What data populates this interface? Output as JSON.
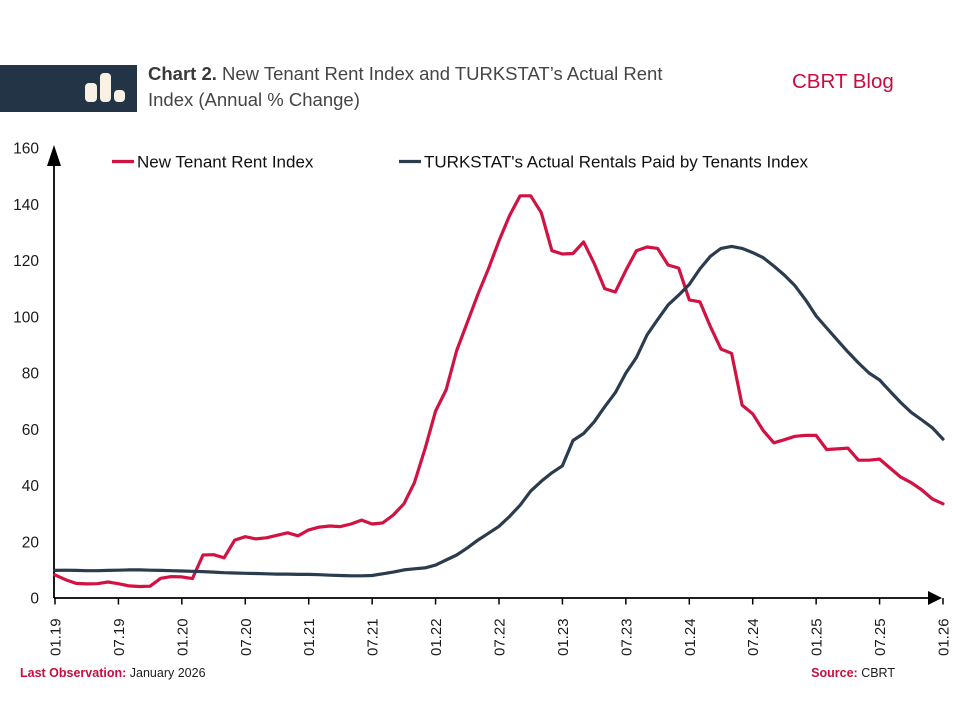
{
  "header": {
    "title_bold": "Chart 2.",
    "title_rest": "New Tenant Rent Index and TURKSTAT’s Actual Rent Index (Annual % Change)",
    "brand": "CBRT Blog",
    "logo_icon": "bar-chart-icon"
  },
  "footer": {
    "last_observation_label": "Last Observation:",
    "last_observation_value": "January 2026",
    "source_label": "Source:",
    "source_value": "CBRT"
  },
  "colors": {
    "accent_red": "#c90d3e",
    "line_red": "#d11243",
    "line_navy": "#2b3c4f",
    "logo_navy": "#233446",
    "axis_black": "#000000"
  },
  "chart_data": {
    "type": "line",
    "title": "New Tenant Rent Index and TURKSTAT's Actual Rent Index (Annual % Change)",
    "x_unit": "month",
    "x_start": "2019-01",
    "x_end": "2026-01",
    "x_tick_labels": [
      "01.19",
      "07.19",
      "01.20",
      "07.20",
      "01.21",
      "07.21",
      "01.22",
      "07.22",
      "01.23",
      "07.23",
      "01.24",
      "07.24",
      "01.25",
      "07.25",
      "01.26"
    ],
    "y_ticks": [
      0,
      20,
      40,
      60,
      80,
      100,
      120,
      140,
      160
    ],
    "ylim": [
      0,
      160
    ],
    "grid": false,
    "legend_position": "top",
    "series": [
      {
        "name": "New Tenant Rent Index",
        "color": "#d11243",
        "values": [
          8.2,
          6.5,
          5.2,
          5.0,
          5.1,
          5.7,
          5.1,
          4.3,
          4.1,
          4.2,
          7.0,
          7.6,
          7.5,
          6.9,
          15.3,
          15.4,
          14.3,
          20.6,
          21.8,
          21.0,
          21.4,
          22.3,
          23.2,
          22.1,
          24.2,
          25.2,
          25.6,
          25.4,
          26.3,
          27.7,
          26.3,
          26.7,
          29.5,
          33.5,
          41.0,
          53.0,
          66.5,
          74.0,
          88.0,
          98.0,
          108.0,
          117.0,
          127.0,
          136.0,
          143.0,
          143.0,
          137.0,
          123.5,
          122.3,
          122.5,
          126.6,
          119.0,
          110.0,
          108.8,
          116.5,
          123.5,
          124.8,
          124.3,
          118.4,
          117.3,
          106.0,
          105.3,
          96.5,
          88.5,
          87.0,
          68.6,
          65.5,
          59.5,
          55.2,
          56.3,
          57.5,
          57.8,
          57.8,
          52.8,
          53.0,
          53.3,
          49.0,
          49.0,
          49.4,
          46.2,
          43.0,
          41.0,
          38.4,
          35.2,
          33.5
        ]
      },
      {
        "name": "TURKSTAT's Actual Rentals Paid by Tenants Index",
        "color": "#2b3c4f",
        "values": [
          9.8,
          9.9,
          9.8,
          9.7,
          9.7,
          9.8,
          9.9,
          10.0,
          10.0,
          9.9,
          9.8,
          9.7,
          9.6,
          9.5,
          9.4,
          9.2,
          9.0,
          8.9,
          8.8,
          8.7,
          8.6,
          8.5,
          8.5,
          8.4,
          8.4,
          8.3,
          8.1,
          8.0,
          7.9,
          7.9,
          8.0,
          8.6,
          9.2,
          10.0,
          10.4,
          10.7,
          11.7,
          13.5,
          15.3,
          17.8,
          20.6,
          23.0,
          25.5,
          29.0,
          33.0,
          38.0,
          41.5,
          44.5,
          47.0,
          56.0,
          58.5,
          62.6,
          68.0,
          73.0,
          80.0,
          85.5,
          93.5,
          99.0,
          104.2,
          107.7,
          111.5,
          117.0,
          121.5,
          124.3,
          125.0,
          124.3,
          122.8,
          121.0,
          118.0,
          114.8,
          111.0,
          106.0,
          100.3,
          96.0,
          91.7,
          87.5,
          83.6,
          80.0,
          77.5,
          73.5,
          69.5,
          66.0,
          63.3,
          60.5,
          56.5
        ]
      }
    ]
  }
}
